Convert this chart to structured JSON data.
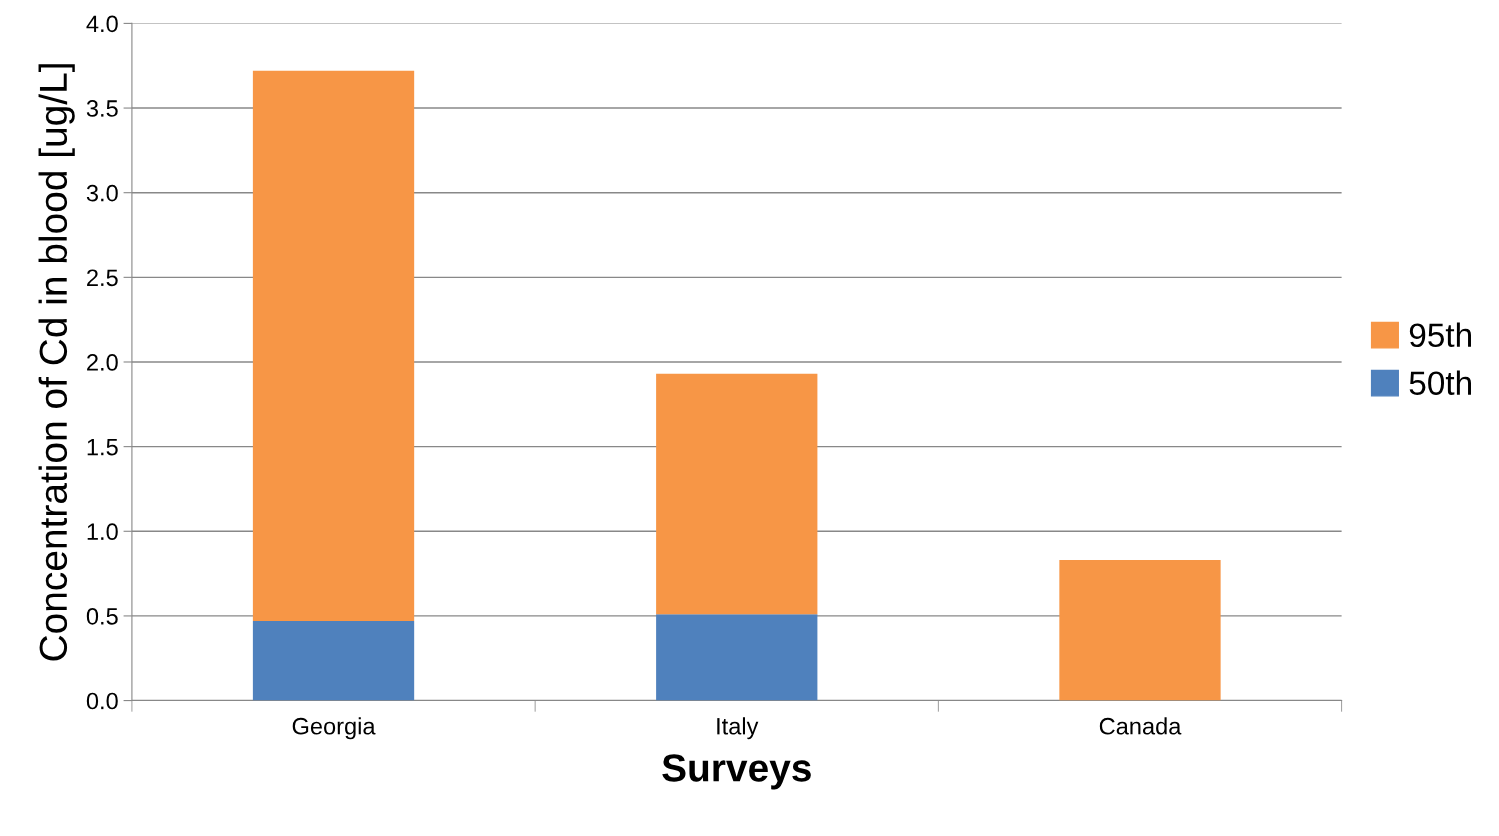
{
  "chart_data": {
    "type": "bar",
    "stacked": true,
    "xlabel": "Surveys",
    "ylabel": "Concentration of Cd in blood [ug/L]",
    "categories": [
      "Georgia",
      "Italy",
      "Canada"
    ],
    "series": [
      {
        "name": "50th",
        "color": "#4f81bd",
        "values": [
          0.47,
          0.51,
          null
        ]
      },
      {
        "name": "95th",
        "color": "#f79646",
        "values": [
          3.25,
          1.42,
          0.83
        ]
      }
    ],
    "ylim": [
      0,
      4.0
    ],
    "yticks": [
      {
        "value": 0,
        "label": "0.0"
      },
      {
        "value": 0.5,
        "label": "0.5"
      },
      {
        "value": 1.0,
        "label": "1.0"
      },
      {
        "value": 1.5,
        "label": "1.5"
      },
      {
        "value": 2.0,
        "label": "2.0"
      },
      {
        "value": 2.5,
        "label": "2.5"
      },
      {
        "value": 3.0,
        "label": "3.0"
      },
      {
        "value": 3.5,
        "label": "3.5"
      },
      {
        "value": 4.0,
        "label": "4.0"
      }
    ],
    "grid": "y",
    "legend": "right"
  }
}
